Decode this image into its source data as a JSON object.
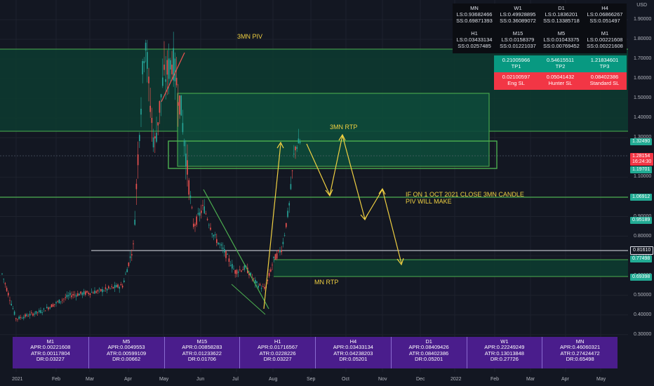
{
  "chart_data": {
    "type": "candlestick",
    "y_axis": {
      "currency": "USD",
      "ticks": [
        "1.90000",
        "1.80000",
        "1.70000",
        "1.60000",
        "1.50000",
        "1.40000",
        "1.30000",
        "1.10000",
        "1.00000",
        "0.90000",
        "0.80000",
        "0.70000",
        "0.60000",
        "0.50000",
        "0.40000",
        "0.30000"
      ]
    },
    "x_axis": {
      "ticks": [
        "2021",
        "Feb",
        "Mar",
        "Apr",
        "May",
        "Jun",
        "Jul",
        "Aug",
        "Sep",
        "Oct",
        "Nov",
        "Dec",
        "2022",
        "Feb",
        "Mar",
        "Apr",
        "May"
      ]
    },
    "annotations": {
      "piv_3mn": "3MN PIV",
      "rtp_3mn": "3MN RTP",
      "note": "IF ON 1 OCT 2021 CLOSE 3MN CANDLE\nPIV WILL MAKE",
      "mn_rtp": "MN RTP"
    },
    "price_tags": [
      {
        "value": "1.32490",
        "color": "#22ab94"
      },
      {
        "value": "1.28154\n16:24:30",
        "color": "#f23645"
      },
      {
        "value": "1.19701",
        "color": "#22ab94"
      },
      {
        "value": "1.06912",
        "color": "#22ab94"
      },
      {
        "value": "0.95189",
        "color": "#22ab94"
      },
      {
        "value": "0.81610",
        "color": "#131722"
      },
      {
        "value": "0.77498",
        "color": "#22ab94"
      },
      {
        "value": "0.69398",
        "color": "#22ab94"
      }
    ],
    "levels_table": [
      {
        "tf": "MN",
        "ls": "LS:0.93682466",
        "ss": "SS:0.69871393"
      },
      {
        "tf": "W1",
        "ls": "LS:0.49928895",
        "ss": "SS:0.36089072"
      },
      {
        "tf": "D1",
        "ls": "LS:0.1836201",
        "ss": "SS:0.13385718"
      },
      {
        "tf": "H4",
        "ls": "LS:0.06866267",
        "ss": "SS:0.051497"
      },
      {
        "tf": "H1",
        "ls": "LS:0.03433134",
        "ss": "SS:0.0257485"
      },
      {
        "tf": "M15",
        "ls": "LS:0.0158379",
        "ss": "SS:0.01221037"
      },
      {
        "tf": "M5",
        "ls": "LS:0.01043375",
        "ss": "SS:0.00769452"
      },
      {
        "tf": "M1",
        "ls": "LS:0.00221608",
        "ss": "SS:0.00221608"
      }
    ],
    "tp_table": [
      {
        "value": "0.21005966",
        "label": "TP1"
      },
      {
        "value": "0.54615511",
        "label": "TP2"
      },
      {
        "value": "1.21834601",
        "label": "TP3"
      }
    ],
    "sl_table": [
      {
        "value": "0.02100597",
        "label": "Eng SL"
      },
      {
        "value": "0.05041432",
        "label": "Hunter SL"
      },
      {
        "value": "0.08402386",
        "label": "Standard SL"
      }
    ],
    "atr_table": [
      {
        "tf": "M1",
        "apr": "APR:0.00221608",
        "atr": "ATR:0.00117804",
        "dr": "DR:0.03227"
      },
      {
        "tf": "M5",
        "apr": "APR:0.0049553",
        "atr": "ATR:0.00599109",
        "dr": "DR:0.00662"
      },
      {
        "tf": "M15",
        "apr": "APR:0.00858283",
        "atr": "ATR:0.01233622",
        "dr": "DR:0.01706"
      },
      {
        "tf": "H1",
        "apr": "APR:0.01716567",
        "atr": "ATR:0.0228226",
        "dr": "DR:0.03227"
      },
      {
        "tf": "H4",
        "apr": "APR:0.03433134",
        "atr": "ATR:0.04238203",
        "dr": "DR:0.05201"
      },
      {
        "tf": "D1",
        "apr": "APR:0.08409426",
        "atr": "ATR:0.08402386",
        "dr": "DR:0.05201"
      },
      {
        "tf": "W1",
        "apr": "APR:0.22249249",
        "atr": "ATR:0.13013848",
        "dr": "DR:0.27726"
      },
      {
        "tf": "MN",
        "apr": "APR:0.46060321",
        "atr": "ATR:0.27424472",
        "dr": "DR:0.65498"
      }
    ],
    "colors": {
      "background": "#131722",
      "up": "#26a69a",
      "down": "#ef5350",
      "annotation": "#f0d042",
      "zone": "#0d3b30",
      "zone_line": "#4caf50"
    }
  }
}
